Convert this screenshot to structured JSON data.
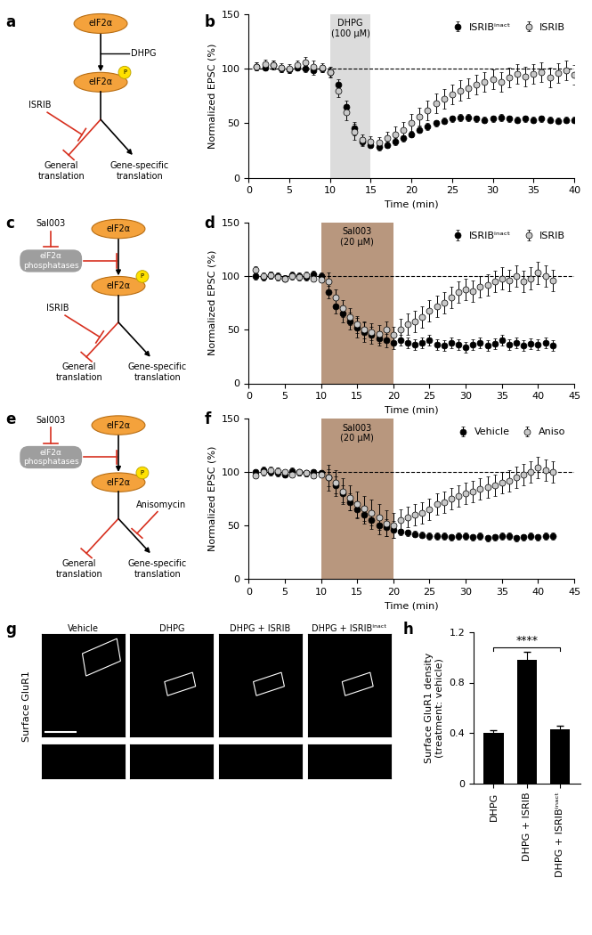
{
  "chart_data": [
    {
      "panel": "b",
      "type": "scatter",
      "marker": "circle",
      "x": [
        1,
        2,
        3,
        4,
        5,
        6,
        7,
        8,
        9,
        10,
        11,
        12,
        13,
        14,
        15,
        16,
        17,
        18,
        19,
        20,
        21,
        22,
        23,
        24,
        25,
        26,
        27,
        28,
        29,
        30,
        31,
        32,
        33,
        34,
        35,
        36,
        37,
        38,
        39,
        40
      ],
      "xlim": [
        0,
        40
      ],
      "xticks": [
        0,
        5,
        10,
        15,
        20,
        25,
        30,
        35,
        40
      ],
      "ylim": [
        0,
        150
      ],
      "yticks": [
        0,
        50,
        100,
        150
      ],
      "x_label": "Time (min)",
      "y_label": "Normalized EPSC (%)",
      "legend": "upper right",
      "reference_line": 100,
      "shade": {
        "label": "DHPG\n(100 μM)",
        "start": 10,
        "end": 15,
        "color": "#dcdcdc"
      },
      "series": [
        {
          "name": "ISRIBⁱⁿᵃᶜᵗ",
          "color": "#000000",
          "values": [
            102,
            101,
            103,
            100,
            99,
            101,
            100,
            98,
            100,
            97,
            85,
            65,
            45,
            33,
            30,
            28,
            30,
            33,
            36,
            40,
            44,
            47,
            50,
            52,
            54,
            55,
            55,
            54,
            53,
            54,
            55,
            54,
            53,
            54,
            53,
            54,
            53,
            52,
            53,
            53
          ],
          "errors": [
            4,
            3,
            4,
            3,
            3,
            3,
            3,
            4,
            3,
            4,
            5,
            6,
            6,
            4,
            3,
            3,
            3,
            3,
            3,
            3,
            3,
            3,
            3,
            3,
            3,
            3,
            3,
            3,
            3,
            3,
            3,
            3,
            3,
            3,
            3,
            3,
            3,
            3,
            3,
            3
          ]
        },
        {
          "name": "ISRIB",
          "color": "#c8c8c8",
          "values": [
            102,
            104,
            103,
            101,
            100,
            103,
            106,
            102,
            101,
            97,
            80,
            60,
            42,
            35,
            33,
            32,
            36,
            40,
            44,
            50,
            56,
            62,
            68,
            72,
            76,
            80,
            82,
            85,
            88,
            90,
            88,
            92,
            95,
            93,
            95,
            97,
            92,
            96,
            98,
            94
          ],
          "errors": [
            4,
            4,
            4,
            4,
            4,
            4,
            5,
            5,
            4,
            5,
            6,
            7,
            7,
            5,
            5,
            5,
            6,
            7,
            7,
            8,
            8,
            9,
            9,
            9,
            9,
            9,
            9,
            9,
            9,
            9,
            9,
            9,
            9,
            9,
            9,
            9,
            9,
            9,
            9,
            9
          ]
        }
      ]
    },
    {
      "panel": "d",
      "type": "scatter",
      "marker": "circle",
      "x": [
        1,
        2,
        3,
        4,
        5,
        6,
        7,
        8,
        9,
        10,
        11,
        12,
        13,
        14,
        15,
        16,
        17,
        18,
        19,
        20,
        21,
        22,
        23,
        24,
        25,
        26,
        27,
        28,
        29,
        30,
        31,
        32,
        33,
        34,
        35,
        36,
        37,
        38,
        39,
        40,
        41,
        42
      ],
      "xlim": [
        0,
        45
      ],
      "xticks": [
        0,
        5,
        10,
        15,
        20,
        25,
        30,
        35,
        40,
        45
      ],
      "ylim": [
        0,
        150
      ],
      "yticks": [
        0,
        50,
        100,
        150
      ],
      "x_label": "Time (min)",
      "y_label": "Normalized EPSC (%)",
      "legend": "upper right",
      "reference_line": 100,
      "shade": {
        "label": "Sal003\n(20 μM)",
        "start": 10,
        "end": 20,
        "color": "#b8977e"
      },
      "series": [
        {
          "name": "ISRIBⁱⁿᵃᶜᵗ",
          "color": "#000000",
          "values": [
            100,
            99,
            101,
            100,
            98,
            101,
            100,
            99,
            102,
            100,
            85,
            72,
            65,
            58,
            52,
            48,
            45,
            42,
            40,
            38,
            40,
            38,
            36,
            38,
            40,
            36,
            35,
            38,
            36,
            34,
            36,
            38,
            35,
            37,
            40,
            36,
            38,
            35,
            37,
            36,
            38,
            35
          ],
          "errors": [
            3,
            3,
            3,
            3,
            3,
            3,
            3,
            3,
            3,
            3,
            6,
            7,
            8,
            8,
            9,
            9,
            8,
            7,
            6,
            6,
            5,
            5,
            5,
            5,
            5,
            5,
            5,
            5,
            5,
            5,
            5,
            5,
            5,
            5,
            5,
            5,
            5,
            5,
            5,
            5,
            5,
            5
          ]
        },
        {
          "name": "ISRIB",
          "color": "#c8c8c8",
          "values": [
            106,
            100,
            101,
            99,
            98,
            100,
            99,
            101,
            98,
            97,
            95,
            80,
            70,
            62,
            55,
            50,
            48,
            46,
            50,
            45,
            50,
            55,
            58,
            62,
            68,
            72,
            75,
            80,
            85,
            88,
            86,
            90,
            92,
            95,
            98,
            96,
            100,
            95,
            98,
            103,
            100,
            96
          ],
          "errors": [
            3,
            3,
            3,
            3,
            3,
            3,
            3,
            3,
            3,
            3,
            8,
            8,
            8,
            8,
            8,
            8,
            8,
            8,
            8,
            8,
            10,
            10,
            10,
            10,
            10,
            10,
            10,
            10,
            10,
            10,
            10,
            10,
            10,
            10,
            10,
            10,
            10,
            10,
            10,
            10,
            10,
            10
          ]
        }
      ]
    },
    {
      "panel": "f",
      "type": "scatter",
      "marker": "circle",
      "x": [
        1,
        2,
        3,
        4,
        5,
        6,
        7,
        8,
        9,
        10,
        11,
        12,
        13,
        14,
        15,
        16,
        17,
        18,
        19,
        20,
        21,
        22,
        23,
        24,
        25,
        26,
        27,
        28,
        29,
        30,
        31,
        32,
        33,
        34,
        35,
        36,
        37,
        38,
        39,
        40,
        41,
        42
      ],
      "xlim": [
        0,
        45
      ],
      "xticks": [
        0,
        5,
        10,
        15,
        20,
        25,
        30,
        35,
        40,
        45
      ],
      "ylim": [
        0,
        150
      ],
      "yticks": [
        0,
        50,
        100,
        150
      ],
      "x_label": "Time (min)",
      "y_label": "Normalized EPSC (%)",
      "legend": "upper right",
      "reference_line": 100,
      "shade": {
        "label": "Sal003\n(20 μM)",
        "start": 10,
        "end": 20,
        "color": "#b8977e"
      },
      "series": [
        {
          "name": "Vehicle",
          "color": "#000000",
          "values": [
            100,
            102,
            100,
            99,
            98,
            101,
            100,
            99,
            100,
            99,
            95,
            88,
            80,
            72,
            65,
            60,
            55,
            50,
            48,
            46,
            44,
            43,
            42,
            41,
            40,
            40,
            40,
            39,
            40,
            40,
            39,
            40,
            38,
            39,
            40,
            40,
            38,
            39,
            40,
            39,
            40,
            40
          ],
          "errors": [
            3,
            3,
            3,
            3,
            3,
            3,
            3,
            3,
            3,
            3,
            8,
            8,
            8,
            8,
            8,
            8,
            8,
            8,
            8,
            8,
            3,
            3,
            3,
            3,
            3,
            3,
            3,
            3,
            3,
            3,
            3,
            3,
            3,
            3,
            3,
            3,
            3,
            3,
            3,
            3,
            3,
            3
          ]
        },
        {
          "name": "Aniso",
          "color": "#c8c8c8",
          "values": [
            97,
            100,
            102,
            101,
            100,
            98,
            100,
            99,
            97,
            98,
            95,
            90,
            82,
            76,
            70,
            66,
            62,
            58,
            52,
            50,
            55,
            58,
            60,
            62,
            65,
            70,
            72,
            75,
            78,
            80,
            82,
            84,
            86,
            88,
            90,
            92,
            95,
            98,
            100,
            104,
            102,
            100
          ],
          "errors": [
            3,
            3,
            3,
            3,
            3,
            3,
            3,
            3,
            3,
            3,
            12,
            12,
            12,
            12,
            12,
            12,
            12,
            12,
            12,
            12,
            10,
            10,
            10,
            10,
            10,
            10,
            10,
            10,
            10,
            10,
            10,
            10,
            10,
            10,
            10,
            10,
            10,
            10,
            10,
            10,
            10,
            10
          ]
        }
      ]
    },
    {
      "panel": "h",
      "type": "bar",
      "color": "#000000",
      "categories": [
        "DHPG",
        "DHPG + ISRIB",
        "DHPG + ISRIBⁱⁿᵃᶜᵗ"
      ],
      "values": [
        0.4,
        0.98,
        0.43
      ],
      "errors": [
        0.02,
        0.06,
        0.03
      ],
      "ylim": [
        0,
        1.2
      ],
      "yticks": [
        0,
        0.4,
        0.8,
        1.2
      ],
      "y_label": "Surface GluR1 density\n(treatment: vehicle)",
      "significance": {
        "text": "****",
        "between": [
          "DHPG",
          "DHPG + ISRIBⁱⁿᵃᶜᵗ"
        ]
      }
    }
  ],
  "diagrams": [
    {
      "panel": "a",
      "eif2a": "eIF2α",
      "phospho": "P",
      "trigger": "DHPG",
      "general": "General\ntranslation",
      "specific": "Gene-specific\ntranslation",
      "general_inhibitor": "ISRIB"
    },
    {
      "panel": "c",
      "eif2a": "eIF2α",
      "phospho": "P",
      "phosphatase_inhibitor": "Sal003",
      "phosphatases": "eIF2α\nphosphatases",
      "general": "General\ntranslation",
      "specific": "Gene-specific\ntranslation",
      "general_inhibitor": "ISRIB"
    },
    {
      "panel": "e",
      "eif2a": "eIF2α",
      "phospho": "P",
      "phosphatase_inhibitor": "Sal003",
      "phosphatases": "eIF2α\nphosphatases",
      "general": "General\ntranslation",
      "specific": "Gene-specific\ntranslation",
      "specific_inhibitor": "Anisomycin"
    }
  ],
  "image_panel": {
    "panel": "g",
    "row_label": "Surface GluR1",
    "columns": [
      "Vehicle",
      "DHPG",
      "DHPG + ISRIB",
      "DHPG + ISRIBⁱⁿᵃᶜᵗ"
    ]
  }
}
